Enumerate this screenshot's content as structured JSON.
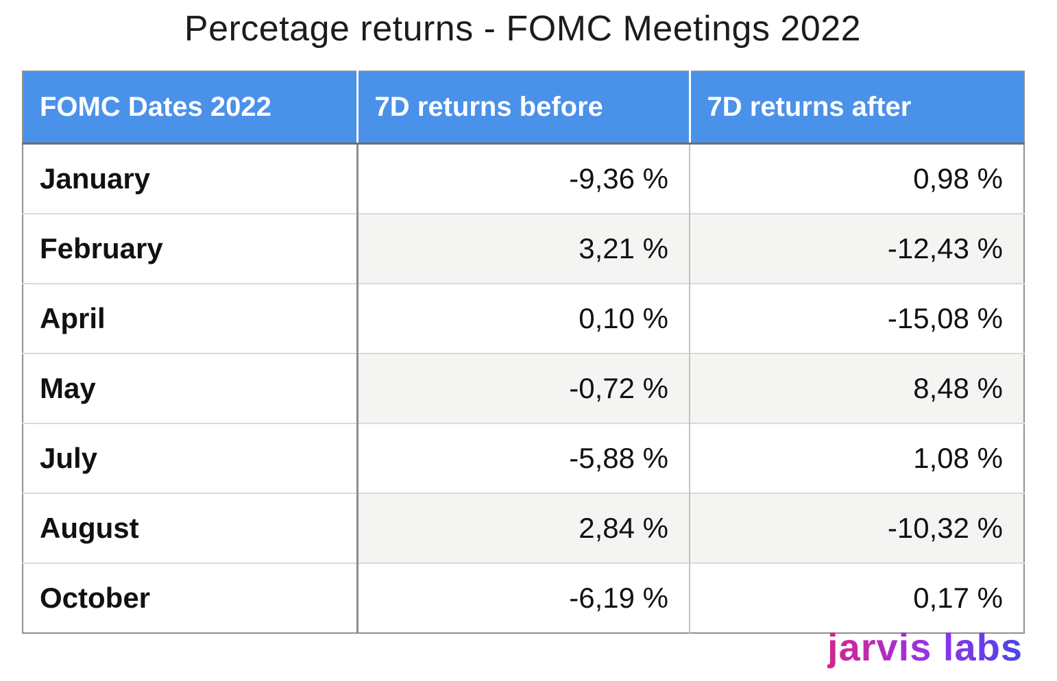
{
  "title": "Percetage returns - FOMC Meetings 2022",
  "table": {
    "columns": [
      "FOMC Dates 2022",
      "7D returns before",
      "7D returns after"
    ],
    "rows": [
      {
        "month": "January",
        "before": "-9,36 %",
        "after": "0,98 %"
      },
      {
        "month": "February",
        "before": "3,21 %",
        "after": "-12,43 %"
      },
      {
        "month": "April",
        "before": "0,10 %",
        "after": "-15,08 %"
      },
      {
        "month": "May",
        "before": "-0,72 %",
        "after": "8,48 %"
      },
      {
        "month": "July",
        "before": "-5,88 %",
        "after": "1,08 %"
      },
      {
        "month": "August",
        "before": "2,84 %",
        "after": "-10,32 %"
      },
      {
        "month": "October",
        "before": "-6,19 %",
        "after": "0,17 %"
      }
    ]
  },
  "branding": {
    "logo_text": "jarvis labs"
  },
  "colors": {
    "header_bg": "#4a91ea",
    "header_text": "#ffffff",
    "stripe_bg": "#f4f4f2",
    "logo_gradient_start": "#d4258e",
    "logo_gradient_mid": "#9333ea",
    "logo_gradient_end": "#4646e8"
  },
  "chart_data": {
    "type": "table",
    "title": "Percetage returns - FOMC Meetings 2022",
    "columns": [
      "FOMC Dates 2022",
      "7D returns before",
      "7D returns after"
    ],
    "categories": [
      "January",
      "February",
      "April",
      "May",
      "July",
      "August",
      "October"
    ],
    "series": [
      {
        "name": "7D returns before",
        "values": [
          -9.36,
          3.21,
          0.1,
          -0.72,
          -5.88,
          2.84,
          -6.19
        ]
      },
      {
        "name": "7D returns after",
        "values": [
          0.98,
          -12.43,
          -15.08,
          8.48,
          1.08,
          -10.32,
          0.17
        ]
      }
    ],
    "unit": "%",
    "decimal_separator": ","
  }
}
